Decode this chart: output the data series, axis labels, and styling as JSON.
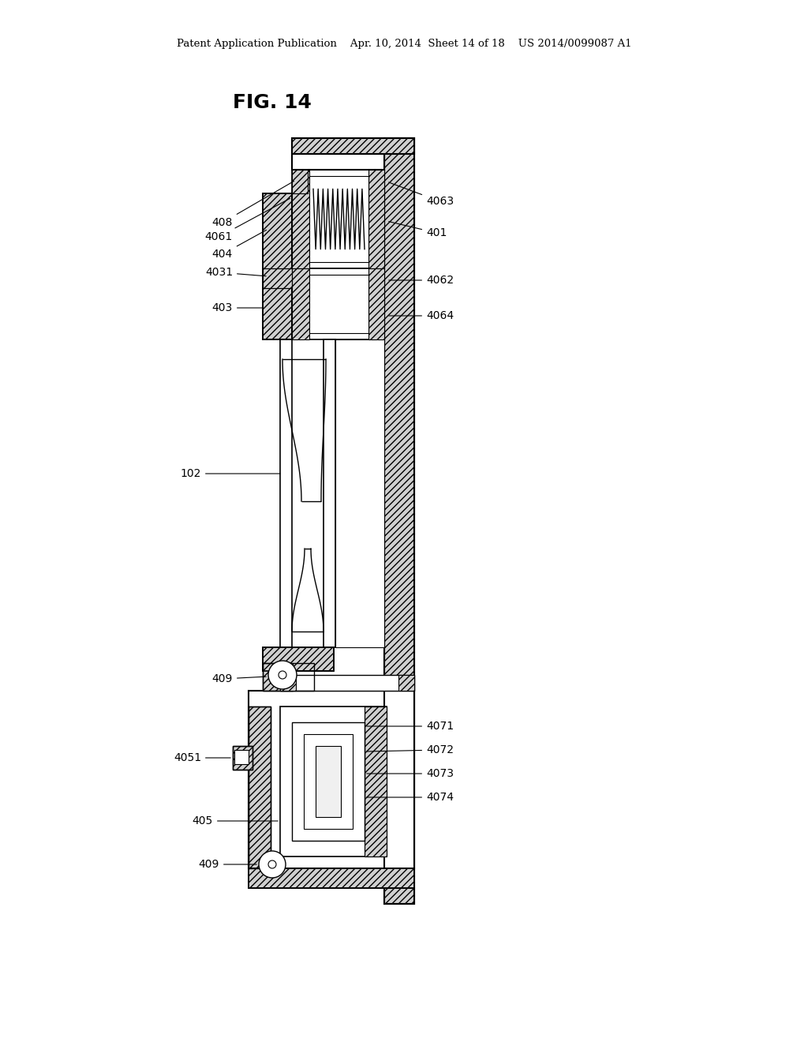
{
  "bg_color": "#ffffff",
  "header_text": "Patent Application Publication    Apr. 10, 2014  Sheet 14 of 18    US 2014/0099087 A1",
  "fig_label": "FIG. 14"
}
